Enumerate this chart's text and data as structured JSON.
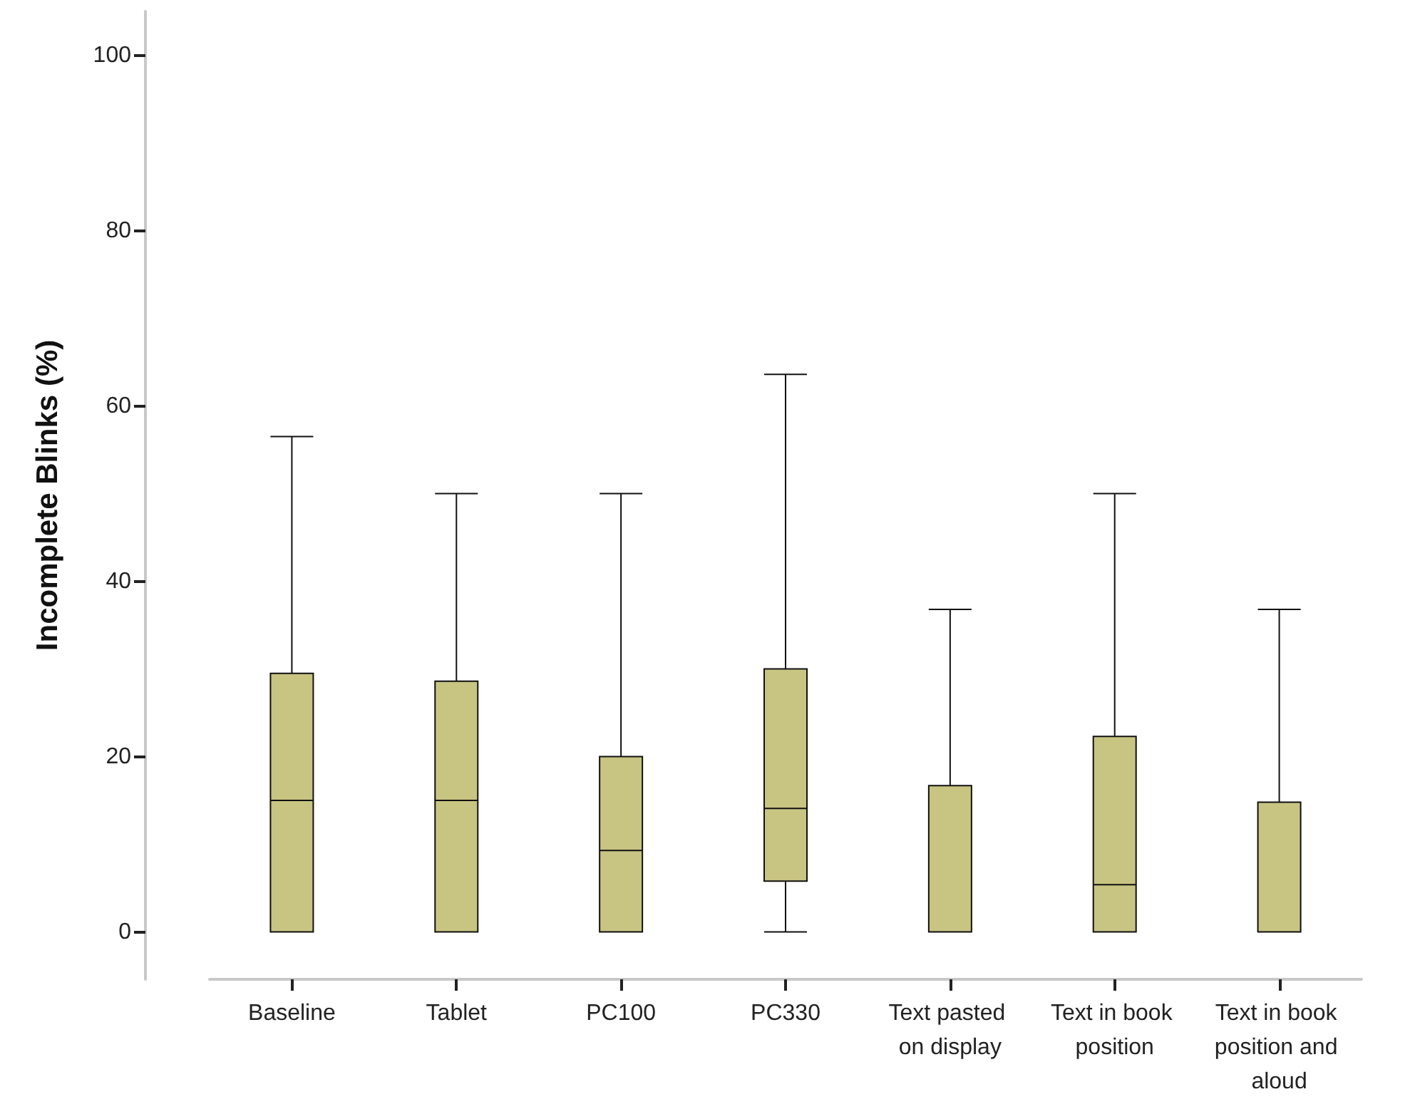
{
  "chart_data": {
    "type": "box",
    "ylabel": "Incomplete Blinks (%)",
    "categories": [
      "Baseline",
      "Tablet",
      "PC100",
      "PC330",
      "Text pasted on display",
      "Text in book position",
      "Text in book position and aloud"
    ],
    "series": [
      {
        "color": "#c8c482",
        "boxes": [
          {
            "low": 0,
            "q1": 0,
            "median": 15,
            "q3": 29.5,
            "high": 56.5
          },
          {
            "low": 0,
            "q1": 0,
            "median": 15,
            "q3": 28.6,
            "high": 50
          },
          {
            "low": 0,
            "q1": 0,
            "median": 9.3,
            "q3": 20,
            "high": 50
          },
          {
            "low": 0,
            "q1": 5.8,
            "median": 14.1,
            "q3": 30,
            "high": 63.6
          },
          {
            "low": 0,
            "q1": 0,
            "median": 0,
            "q3": 16.7,
            "high": 36.8
          },
          {
            "low": 0,
            "q1": 0,
            "median": 5.4,
            "q3": 22.3,
            "high": 50
          },
          {
            "low": 0,
            "q1": 0,
            "median": 0,
            "q3": 14.8,
            "high": 36.8
          }
        ]
      }
    ],
    "ylim": [
      -5.4,
      105
    ],
    "yticks": [
      0,
      20,
      40,
      60,
      80,
      100
    ],
    "grid": false
  }
}
